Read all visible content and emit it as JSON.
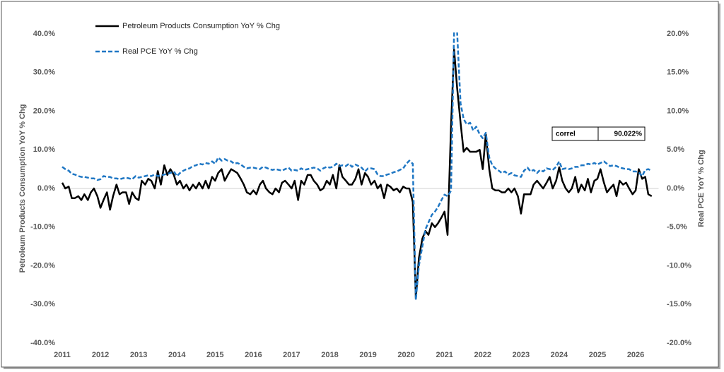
{
  "chart_data": {
    "type": "line",
    "y_label": "Petroleum Products Consumption YoY % Chg",
    "y2_label": "Real PCE YoY % Chg",
    "annotation": {
      "label": "correl",
      "value": "90.022%"
    },
    "xlim": [
      2011,
      2026.6
    ],
    "xticks": [
      2011,
      2012,
      2013,
      2014,
      2015,
      2016,
      2017,
      2018,
      2019,
      2020,
      2021,
      2022,
      2023,
      2024,
      2025,
      2026
    ],
    "ylim": [
      -40,
      40
    ],
    "yticks": [
      {
        "value": -40,
        "label": "-40.0%"
      },
      {
        "value": -30,
        "label": "-30.0%"
      },
      {
        "value": -20,
        "label": "-20.0%"
      },
      {
        "value": -10,
        "label": "-10.0%"
      },
      {
        "value": 0,
        "label": "0.0%"
      },
      {
        "value": 10,
        "label": "10.0%"
      },
      {
        "value": 20,
        "label": "20.0%"
      },
      {
        "value": 30,
        "label": "30.0%"
      },
      {
        "value": 40,
        "label": "40.0%"
      }
    ],
    "y2lim": [
      -20,
      20
    ],
    "y2ticks": [
      {
        "value": -20,
        "label": "-20.0%"
      },
      {
        "value": -15,
        "label": "-15.0%"
      },
      {
        "value": -10,
        "label": "-10.0%"
      },
      {
        "value": -5,
        "label": "-5.0%"
      },
      {
        "value": 0,
        "label": "0.0%"
      },
      {
        "value": 5,
        "label": "5.0%"
      },
      {
        "value": 10,
        "label": "10.0%"
      },
      {
        "value": 15,
        "label": "15.0%"
      },
      {
        "value": 20,
        "label": "20.0%"
      }
    ],
    "x": [
      2011,
      2011.08,
      2011.17,
      2011.25,
      2011.33,
      2011.42,
      2011.5,
      2011.58,
      2011.67,
      2011.75,
      2011.83,
      2011.92,
      2012,
      2012.08,
      2012.17,
      2012.25,
      2012.33,
      2012.42,
      2012.5,
      2012.58,
      2012.67,
      2012.75,
      2012.83,
      2012.92,
      2013,
      2013.08,
      2013.17,
      2013.25,
      2013.33,
      2013.42,
      2013.5,
      2013.58,
      2013.67,
      2013.75,
      2013.83,
      2013.92,
      2014,
      2014.08,
      2014.17,
      2014.25,
      2014.33,
      2014.42,
      2014.5,
      2014.58,
      2014.67,
      2014.75,
      2014.83,
      2014.92,
      2015,
      2015.08,
      2015.17,
      2015.25,
      2015.33,
      2015.42,
      2015.5,
      2015.58,
      2015.67,
      2015.75,
      2015.83,
      2015.92,
      2016,
      2016.08,
      2016.17,
      2016.25,
      2016.33,
      2016.42,
      2016.5,
      2016.58,
      2016.67,
      2016.75,
      2016.83,
      2016.92,
      2017,
      2017.08,
      2017.17,
      2017.25,
      2017.33,
      2017.42,
      2017.5,
      2017.58,
      2017.67,
      2017.75,
      2017.83,
      2017.92,
      2018,
      2018.08,
      2018.17,
      2018.25,
      2018.33,
      2018.42,
      2018.5,
      2018.58,
      2018.67,
      2018.75,
      2018.83,
      2018.92,
      2019,
      2019.08,
      2019.17,
      2019.25,
      2019.33,
      2019.42,
      2019.5,
      2019.58,
      2019.67,
      2019.75,
      2019.83,
      2019.92,
      2020,
      2020.08,
      2020.17,
      2020.25,
      2020.33,
      2020.42,
      2020.5,
      2020.58,
      2020.67,
      2020.75,
      2020.83,
      2020.92,
      2021,
      2021.08,
      2021.17,
      2021.25,
      2021.33,
      2021.42,
      2021.5,
      2021.58,
      2021.67,
      2021.75,
      2021.83,
      2021.92,
      2022,
      2022.08,
      2022.17,
      2022.25,
      2022.33,
      2022.42,
      2022.5,
      2022.58,
      2022.67,
      2022.75,
      2022.83,
      2022.92,
      2023,
      2023.08,
      2023.17,
      2023.25,
      2023.33,
      2023.42,
      2023.5,
      2023.58,
      2023.67,
      2023.75,
      2023.83,
      2023.92,
      2024,
      2024.08,
      2024.17,
      2024.25,
      2024.33,
      2024.42,
      2024.5,
      2024.58,
      2024.67,
      2024.75,
      2024.83,
      2024.92,
      2025,
      2025.08,
      2025.17,
      2025.25,
      2025.33,
      2025.42,
      2025.5,
      2025.58,
      2025.67,
      2025.75,
      2025.83,
      2025.92,
      2026,
      2026.08,
      2026.17,
      2026.25,
      2026.33,
      2026.42
    ],
    "series": [
      {
        "name": "Petroleum Products Consumption YoY % Chg",
        "color": "#000000",
        "style": "solid",
        "values": [
          1.5,
          0,
          0.5,
          -2.5,
          -2.5,
          -2,
          -3,
          -1.5,
          -3,
          -1,
          0,
          -2,
          -5,
          -3,
          -1,
          -5.5,
          -2,
          1,
          -1.5,
          -1,
          -1,
          -4,
          -1,
          -2.5,
          -3,
          2,
          1,
          2.5,
          2,
          0,
          4.5,
          1,
          6,
          3.5,
          5,
          3.5,
          1,
          2,
          0,
          1,
          -0.5,
          1,
          0,
          1.5,
          0,
          2,
          0,
          3,
          2,
          4,
          5,
          2,
          3.5,
          5,
          4.5,
          4,
          2.5,
          1,
          -1,
          -1.5,
          -0.5,
          -1.5,
          1,
          2,
          0,
          -1,
          -1.5,
          0,
          -1,
          1.5,
          2,
          1,
          0,
          2,
          -3,
          2,
          1,
          3.5,
          3.5,
          2,
          1,
          -0.5,
          0,
          2,
          1,
          3.5,
          0,
          6,
          3,
          2,
          1,
          1,
          2.5,
          5,
          1,
          4,
          3,
          1,
          2,
          0,
          1,
          -2.5,
          1,
          0.5,
          -0.5,
          0,
          -1,
          0.5,
          0,
          0,
          -3.5,
          -28.5,
          -18,
          -13,
          -11,
          -12,
          -9,
          -10,
          -9,
          -7.5,
          -6,
          -12,
          16,
          36,
          26,
          17,
          9.5,
          10.5,
          9.5,
          9.5,
          9.5,
          10,
          5,
          14,
          5,
          0,
          -0.5,
          -0.5,
          -1,
          -1,
          0,
          -1,
          0,
          -2,
          -6.5,
          -1.5,
          -1.5,
          -1.5,
          1,
          2,
          1,
          0,
          1.5,
          3,
          0,
          2,
          5.5,
          2,
          0,
          -1,
          0,
          3,
          -1,
          1,
          -0.5,
          2.5,
          -1,
          2,
          2.5,
          5,
          1.5,
          -1,
          0,
          1,
          -2,
          2,
          1,
          1.5,
          0,
          -1.5,
          -0.5,
          5,
          2.5,
          3,
          -1.5,
          -2
        ]
      },
      {
        "name": "Real PCE YoY % Chg",
        "color": "#1f77c4",
        "style": "dashed",
        "axis": "y2",
        "values": [
          2.8,
          2.5,
          2.3,
          1.9,
          1.8,
          1.6,
          1.5,
          1.5,
          1.4,
          1.3,
          1.3,
          1.1,
          1.2,
          1.6,
          1.5,
          1.5,
          1.3,
          1.3,
          1.2,
          1.3,
          1.4,
          1.3,
          1.2,
          1.6,
          1.4,
          1.5,
          1.6,
          1.7,
          1.6,
          1.8,
          1.6,
          1.7,
          1.8,
          1.9,
          2.0,
          2.2,
          1.6,
          2.0,
          2.3,
          2.5,
          2.6,
          2.9,
          3.0,
          3.2,
          3.1,
          3.3,
          3.2,
          3.5,
          3.2,
          4.0,
          3.6,
          3.8,
          3.6,
          3.5,
          3.2,
          3.3,
          3.1,
          2.8,
          2.6,
          2.7,
          2.7,
          2.6,
          2.5,
          2.8,
          2.7,
          2.5,
          2.4,
          2.5,
          2.4,
          2.3,
          2.5,
          2.7,
          2.3,
          2.4,
          2.3,
          2.6,
          2.4,
          2.5,
          2.6,
          2.7,
          2.6,
          2.3,
          2.6,
          2.8,
          2.7,
          2.8,
          3.2,
          2.9,
          3.0,
          2.9,
          3.2,
          2.8,
          3.1,
          2.9,
          2.7,
          2.2,
          2.6,
          2.6,
          2.5,
          1.8,
          1.6,
          1.6,
          1.8,
          1.9,
          2.1,
          2.2,
          2.4,
          2.6,
          3.2,
          3.6,
          3.2,
          -14.4,
          -10,
          -7.5,
          -5.3,
          -4.4,
          -3.4,
          -3,
          -2.4,
          -1.5,
          -0.8,
          -1,
          -0.3,
          20.2,
          20.2,
          11,
          9.0,
          8.3,
          8.5,
          7.5,
          8.0,
          7.0,
          6.5,
          7.2,
          4,
          3.0,
          2.6,
          2.3,
          2.0,
          2.2,
          1.8,
          2.0,
          1.7,
          1.6,
          1.5,
          2.3,
          2.7,
          2.2,
          2.4,
          2.0,
          2.4,
          2.2,
          2.6,
          2.5,
          2.4,
          2.8,
          3.5,
          2.5,
          2.6,
          2.5,
          2.6,
          2.8,
          2.8,
          3.0,
          3.0,
          3.2,
          3.1,
          3.3,
          3.1,
          3.3,
          3.5,
          3.2,
          2.9,
          3.0,
          2.9,
          2.7,
          2.6,
          2.5,
          2.5,
          2.2,
          2.2,
          2.1,
          1.6,
          2.4,
          2.5,
          2.3
        ]
      }
    ]
  }
}
